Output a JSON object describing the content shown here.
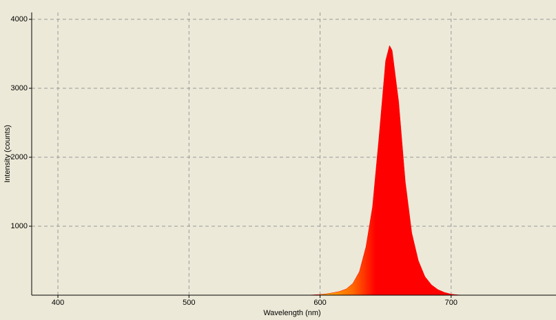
{
  "chart_data": {
    "type": "area",
    "x_label": "Wavelength (nm)",
    "y_label": "Intensity (counts)",
    "x": [
      590,
      595,
      600,
      605,
      610,
      615,
      620,
      625,
      630,
      635,
      640,
      645,
      650,
      653,
      655,
      660,
      665,
      670,
      675,
      680,
      685,
      690,
      695,
      700,
      705,
      710
    ],
    "values": [
      0,
      5,
      10,
      20,
      35,
      55,
      90,
      170,
      340,
      700,
      1280,
      2300,
      3400,
      3620,
      3550,
      2800,
      1650,
      900,
      500,
      270,
      150,
      80,
      40,
      15,
      5,
      0
    ],
    "xlim": [
      380,
      780
    ],
    "ylim": [
      0,
      4100
    ],
    "xticks": [
      400,
      500,
      600,
      700
    ],
    "yticks": [
      1000,
      2000,
      3000,
      4000
    ],
    "grid": true
  }
}
